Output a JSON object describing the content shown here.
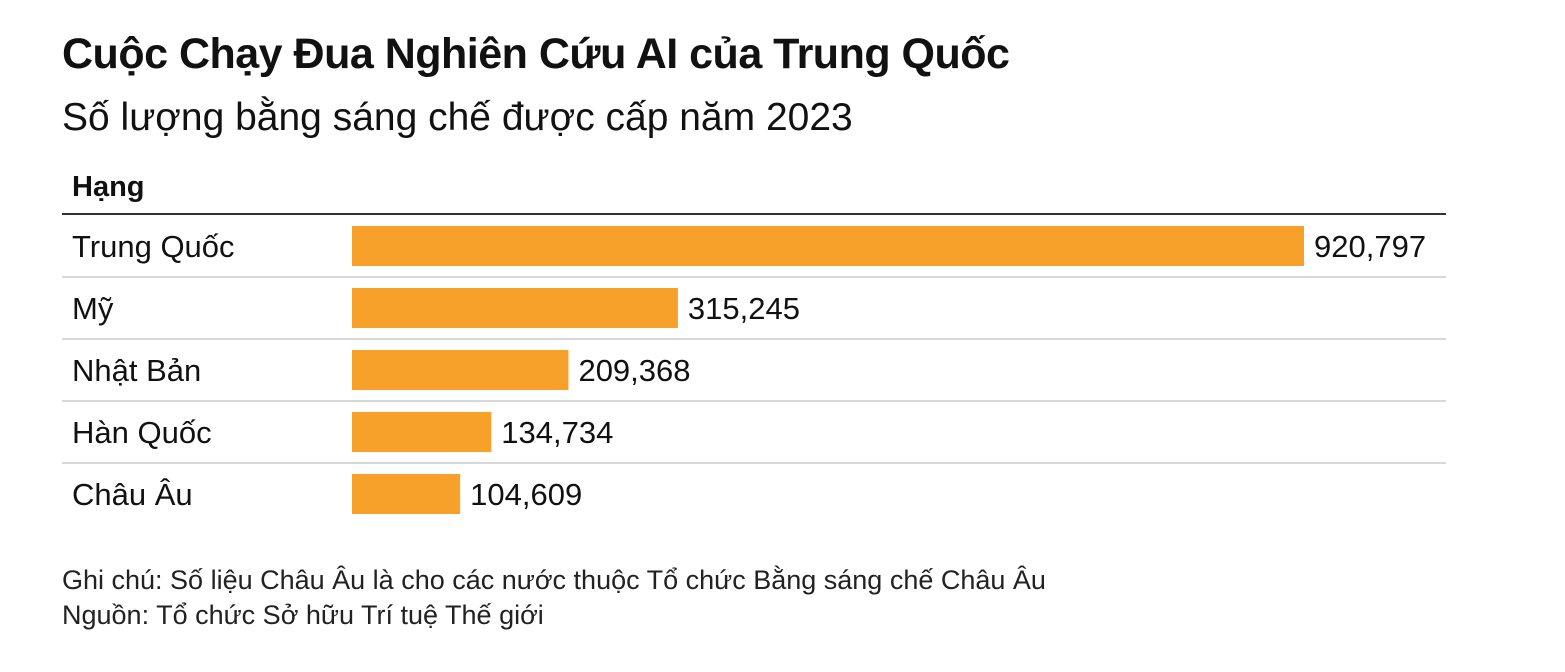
{
  "title": "Cuộc Chạy Đua Nghiên Cứu AI của Trung Quốc",
  "subtitle": "Số lượng bằng sáng chế được cấp năm 2023",
  "column_header": "Hạng",
  "bar_color": "#f8a12a",
  "chart_data": {
    "type": "bar",
    "orientation": "horizontal",
    "categories": [
      "Trung Quốc",
      "Mỹ",
      "Nhật Bản",
      "Hàn Quốc",
      "Châu Âu"
    ],
    "values": [
      920797,
      315245,
      209368,
      134734,
      104609
    ],
    "value_labels": [
      "920,797",
      "315,245",
      "209,368",
      "134,734",
      "104,609"
    ],
    "title": "Cuộc Chạy Đua Nghiên Cứu AI của Trung Quốc",
    "subtitle": "Số lượng bằng sáng chế được cấp năm 2023",
    "xlabel": "",
    "ylabel": "Hạng",
    "grid": false,
    "legend": "none"
  },
  "notes": {
    "note": "Ghi chú: Số liệu Châu Âu là cho các nước thuộc Tổ chức Bằng sáng chế Châu Âu",
    "source": "Nguồn: Tổ chức Sở hữu Trí tuệ Thế giới"
  }
}
